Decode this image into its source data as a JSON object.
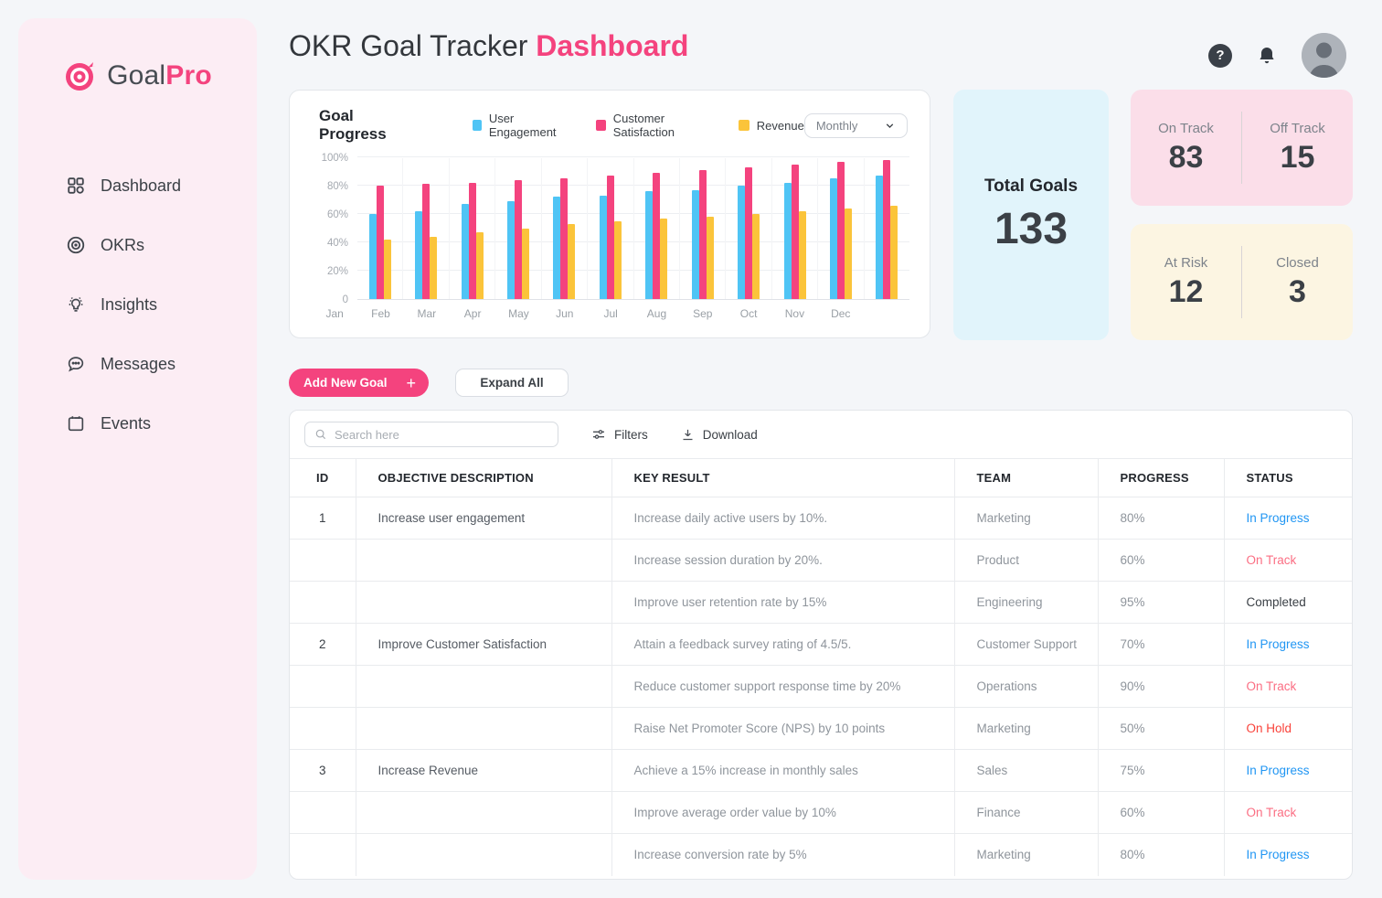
{
  "brand": {
    "name_primary": "Goal",
    "name_secondary": "Pro"
  },
  "sidebar": {
    "items": [
      {
        "label": "Dashboard",
        "icon": "grid-icon"
      },
      {
        "label": "OKRs",
        "icon": "target-icon"
      },
      {
        "label": "Insights",
        "icon": "lightbulb-icon"
      },
      {
        "label": "Messages",
        "icon": "chat-icon"
      },
      {
        "label": "Events",
        "icon": "calendar-icon"
      }
    ]
  },
  "header": {
    "title_prefix": "OKR Goal Tracker",
    "title_accent": "Dashboard"
  },
  "chart_card": {
    "title": "Goal Progress",
    "period_selector": "Monthly"
  },
  "chart_data": {
    "type": "bar",
    "title": "Goal Progress",
    "categories": [
      "Jan",
      "Feb",
      "Mar",
      "Apr",
      "May",
      "Jun",
      "Jul",
      "Aug",
      "Sep",
      "Oct",
      "Nov",
      "Dec"
    ],
    "series": [
      {
        "name": "User Engagement",
        "color": "#4FC4F5",
        "values": [
          60,
          62,
          67,
          69,
          72,
          73,
          76,
          77,
          80,
          82,
          85,
          87
        ]
      },
      {
        "name": "Customer Satisfaction",
        "color": "#F4437E",
        "values": [
          80,
          81,
          82,
          84,
          85,
          87,
          89,
          91,
          93,
          95,
          97,
          98
        ]
      },
      {
        "name": "Revenue",
        "color": "#FBC43A",
        "values": [
          42,
          44,
          47,
          50,
          53,
          55,
          57,
          58,
          60,
          62,
          64,
          66
        ]
      }
    ],
    "xlabel": "",
    "ylabel": "",
    "ylim": [
      0,
      100
    ],
    "ytick_values": [
      0,
      20,
      40,
      60,
      80,
      100
    ],
    "ytick_labels": [
      "0",
      "20%",
      "40%",
      "60%",
      "80%",
      "100%"
    ],
    "grid": true,
    "legend_position": "top"
  },
  "stats": {
    "total_goals": {
      "label": "Total Goals",
      "value": "133"
    },
    "track_card": [
      {
        "label": "On Track",
        "value": "83"
      },
      {
        "label": "Off Track",
        "value": "15"
      }
    ],
    "risk_card": [
      {
        "label": "At Risk",
        "value": "12"
      },
      {
        "label": "Closed",
        "value": "3"
      }
    ]
  },
  "actions": {
    "add_new_goal": "Add New Goal",
    "add_icon": "+",
    "expand_all": "Expand All"
  },
  "table": {
    "search_placeholder": "Search here",
    "filters_label": "Filters",
    "download_label": "Download",
    "columns": [
      "ID",
      "OBJECTIVE DESCRIPTION",
      "KEY RESULT",
      "TEAM",
      "PROGRESS",
      "STATUS"
    ],
    "status_colors": {
      "in-progress": "#2196F3",
      "on-track": "#FB6E83",
      "completed": "#3B4046",
      "on-hold": "#F9423A"
    },
    "rows": [
      {
        "id": "1",
        "objective": "Increase user engagement",
        "key_result": "Increase daily active users by 10%.",
        "team": "Marketing",
        "progress": "80%",
        "status": "In Progress",
        "status_type": "in-progress"
      },
      {
        "id": "",
        "objective": "",
        "key_result": "Increase session duration by 20%.",
        "team": "Product",
        "progress": "60%",
        "status": "On Track",
        "status_type": "on-track"
      },
      {
        "id": "",
        "objective": "",
        "key_result": "Improve user retention rate by 15%",
        "team": "Engineering",
        "progress": "95%",
        "status": "Completed",
        "status_type": "completed"
      },
      {
        "id": "2",
        "objective": "Improve Customer Satisfaction",
        "key_result": "Attain a feedback survey rating of 4.5/5.",
        "team": "Customer Support",
        "progress": "70%",
        "status": "In Progress",
        "status_type": "in-progress"
      },
      {
        "id": "",
        "objective": "",
        "key_result": "Reduce customer support response time by 20%",
        "team": "Operations",
        "progress": "90%",
        "status": "On Track",
        "status_type": "on-track"
      },
      {
        "id": "",
        "objective": "",
        "key_result": "Raise Net Promoter Score (NPS) by 10 points",
        "team": "Marketing",
        "progress": "50%",
        "status": "On Hold",
        "status_type": "on-hold"
      },
      {
        "id": "3",
        "objective": "Increase Revenue",
        "key_result": "Achieve a 15% increase in monthly sales",
        "team": "Sales",
        "progress": "75%",
        "status": "In Progress",
        "status_type": "in-progress"
      },
      {
        "id": "",
        "objective": "",
        "key_result": "Improve average order value by 10%",
        "team": "Finance",
        "progress": "60%",
        "status": "On Track",
        "status_type": "on-track"
      },
      {
        "id": "",
        "objective": "",
        "key_result": "Increase conversion rate by 5%",
        "team": "Marketing",
        "progress": "80%",
        "status": "In Progress",
        "status_type": "in-progress"
      }
    ]
  },
  "colors": {
    "brand_pink": "#F4437E",
    "sidebar_bg": "#FCEDF4",
    "page_bg": "#F4F6F9",
    "total_card_bg": "#E1F4FB",
    "track_card_bg": "#FBDEE9",
    "risk_card_bg": "#FCF5E2"
  }
}
